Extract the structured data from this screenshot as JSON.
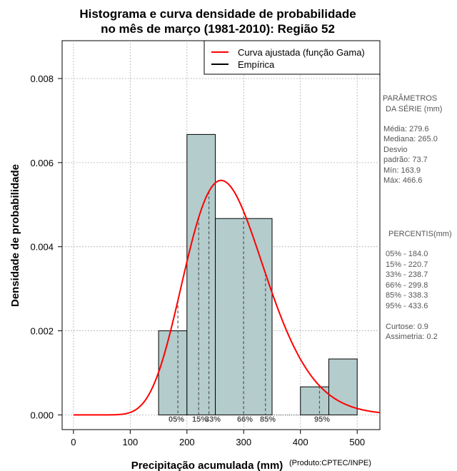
{
  "chart_data": {
    "type": "bar",
    "title_lines": [
      "Histograma e curva densidade de probabilidade",
      "no mês de março (1981-2010): Região 52"
    ],
    "xlabel": "Precipitação acumulada (mm)",
    "ylabel": "Densidade de probabilidade",
    "credit": "(Produto:CPTEC/INPE)",
    "xlim": [
      -20,
      540
    ],
    "ylim": [
      -0.00035,
      0.0089
    ],
    "xticks": [
      0,
      100,
      200,
      300,
      400,
      500
    ],
    "yticks": [
      0.0,
      0.002,
      0.004,
      0.006,
      0.008
    ],
    "ytick_labels": [
      "0.000",
      "0.002",
      "0.004",
      "0.006",
      "0.008"
    ],
    "grid": true,
    "bins": [
      {
        "start": 150,
        "end": 200,
        "density": 0.002
      },
      {
        "start": 200,
        "end": 250,
        "density": 0.00667
      },
      {
        "start": 250,
        "end": 350,
        "density": 0.00467
      },
      {
        "start": 400,
        "end": 450,
        "density": 0.000667
      },
      {
        "start": 450,
        "end": 500,
        "density": 0.00133
      }
    ],
    "gamma_fit": {
      "mean": 279.6,
      "sd": 73.7
    },
    "legend": {
      "position": "top-right",
      "entries": [
        {
          "label": "Curva ajustada (função Gama)",
          "color": "#ff0000"
        },
        {
          "label": "Empírica",
          "color": "#000000"
        }
      ]
    },
    "percentiles": [
      {
        "label": "05%",
        "value": 184.0
      },
      {
        "label": "15%",
        "value": 220.7
      },
      {
        "label": "33%",
        "value": 238.7
      },
      {
        "label": "66%",
        "value": 299.8
      },
      {
        "label": "85%",
        "value": 338.3
      },
      {
        "label": "95%",
        "value": 433.6
      }
    ],
    "percentile_axis_text": [
      "05%",
      "15%",
      "33%",
      "66%",
      "85%",
      "95%"
    ],
    "colors": {
      "bar_fill": "#b4cccc",
      "curve": "#ff0000",
      "grid": "#b0b0b0"
    }
  },
  "side_panel": {
    "params_title_1": "PARÂMETROS",
    "params_title_2": "DA SÉRIE (mm)",
    "media": "Média:  279.6",
    "mediana": "Mediana:  265.0",
    "desvio_1": "Desvio",
    "desvio_2": "padrão:  73.7",
    "min": "Mín:  163.9",
    "max": "Máx:  466.6",
    "percentis_title": "PERCENTIS(mm)",
    "p05": "05% -   184.0",
    "p15": "15% -   220.7",
    "p33": "33% -   238.7",
    "p66": "66% -   299.8",
    "p85": "85% -   338.3",
    "p95": "95% -   433.6",
    "curtose": "Curtose:  0.9",
    "assimetria": "Assimetria:  0.2"
  }
}
